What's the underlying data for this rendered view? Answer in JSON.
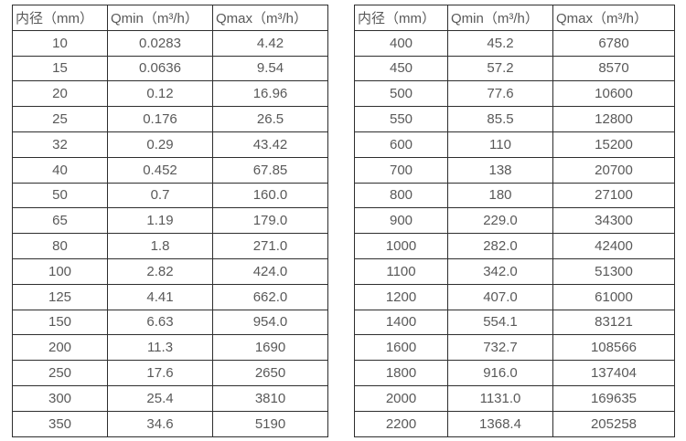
{
  "colors": {
    "background": "#ffffff",
    "border": "#2e2e2e",
    "text": "#595959"
  },
  "tables": [
    {
      "id": "flow-spec-small-diameters",
      "headers": [
        "内径（mm）",
        "Qmin（m³/h）",
        "Qmax（m³/h）"
      ],
      "rows": [
        [
          "10",
          "0.0283",
          "4.42"
        ],
        [
          "15",
          "0.0636",
          "9.54"
        ],
        [
          "20",
          "0.12",
          "16.96"
        ],
        [
          "25",
          "0.176",
          "26.5"
        ],
        [
          "32",
          "0.29",
          "43.42"
        ],
        [
          "40",
          "0.452",
          "67.85"
        ],
        [
          "50",
          "0.7",
          "160.0"
        ],
        [
          "65",
          "1.19",
          "179.0"
        ],
        [
          "80",
          "1.8",
          "271.0"
        ],
        [
          "100",
          "2.82",
          "424.0"
        ],
        [
          "125",
          "4.41",
          "662.0"
        ],
        [
          "150",
          "6.63",
          "954.0"
        ],
        [
          "200",
          "11.3",
          "1690"
        ],
        [
          "250",
          "17.6",
          "2650"
        ],
        [
          "300",
          "25.4",
          "3810"
        ],
        [
          "350",
          "34.6",
          "5190"
        ]
      ]
    },
    {
      "id": "flow-spec-large-diameters",
      "headers": [
        "内径（mm）",
        "Qmin（m³/h）",
        "Qmax（m³/h）"
      ],
      "rows": [
        [
          "400",
          "45.2",
          "6780"
        ],
        [
          "450",
          "57.2",
          "8570"
        ],
        [
          "500",
          "77.6",
          "10600"
        ],
        [
          "550",
          "85.5",
          "12800"
        ],
        [
          "600",
          "110",
          "15200"
        ],
        [
          "700",
          "138",
          "20700"
        ],
        [
          "800",
          "180",
          "27100"
        ],
        [
          "900",
          "229.0",
          "34300"
        ],
        [
          "1000",
          "282.0",
          "42400"
        ],
        [
          "1100",
          "342.0",
          "51300"
        ],
        [
          "1200",
          "407.0",
          "61000"
        ],
        [
          "1400",
          "554.1",
          "83121"
        ],
        [
          "1600",
          "732.7",
          "108566"
        ],
        [
          "1800",
          "916.0",
          "137404"
        ],
        [
          "2000",
          "1131.0",
          "169635"
        ],
        [
          "2200",
          "1368.4",
          "205258"
        ]
      ]
    }
  ]
}
